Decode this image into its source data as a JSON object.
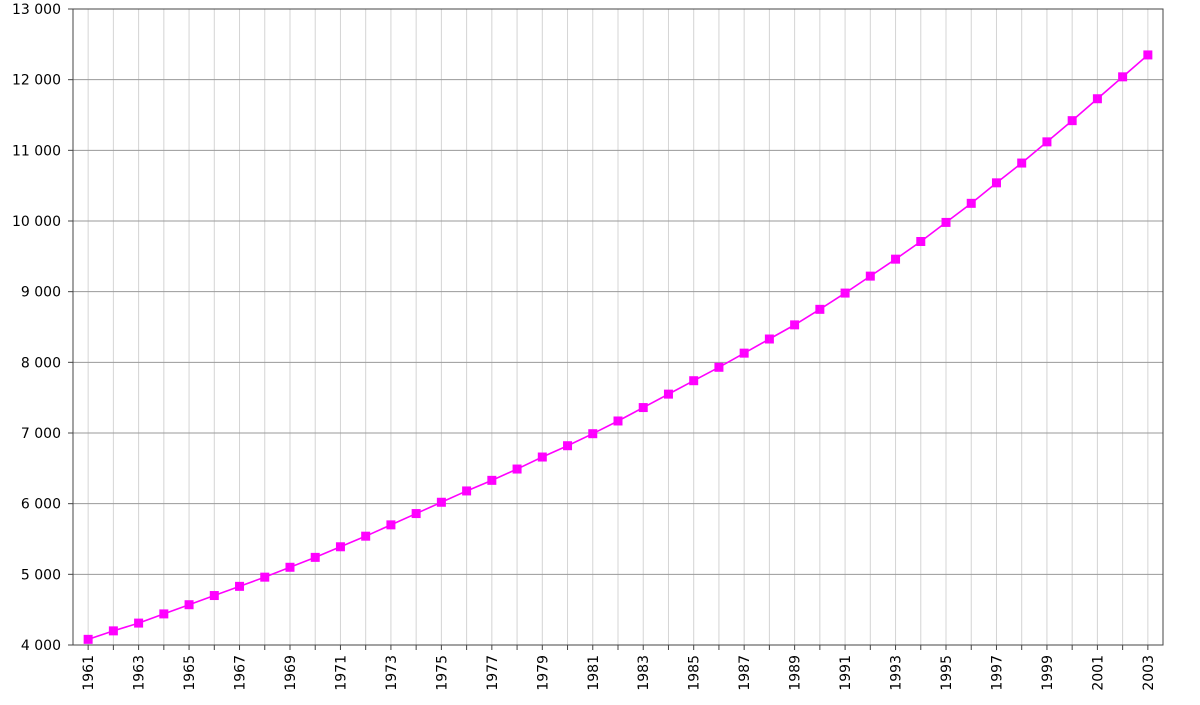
{
  "chart_data": {
    "type": "line",
    "title": "",
    "xlabel": "",
    "ylabel": "",
    "x": [
      1961,
      1962,
      1963,
      1964,
      1965,
      1966,
      1967,
      1968,
      1969,
      1970,
      1971,
      1972,
      1973,
      1974,
      1975,
      1976,
      1977,
      1978,
      1979,
      1980,
      1981,
      1982,
      1983,
      1984,
      1985,
      1986,
      1987,
      1988,
      1989,
      1990,
      1991,
      1992,
      1993,
      1994,
      1995,
      1996,
      1997,
      1998,
      1999,
      2000,
      2001,
      2002,
      2003
    ],
    "series": [
      {
        "values": [
          4080,
          4200,
          4310,
          4440,
          4570,
          4700,
          4830,
          4960,
          5100,
          5240,
          5390,
          5540,
          5700,
          5860,
          6020,
          6180,
          6330,
          6490,
          6660,
          6820,
          6990,
          7170,
          7360,
          7550,
          7740,
          7930,
          8130,
          8330,
          8530,
          8750,
          8980,
          9220,
          9460,
          9710,
          9980,
          10250,
          10540,
          10820,
          11120,
          11420,
          11730,
          12040,
          12350
        ]
      }
    ],
    "xticks": [
      1961,
      1963,
      1965,
      1967,
      1969,
      1971,
      1973,
      1975,
      1977,
      1979,
      1981,
      1983,
      1985,
      1987,
      1989,
      1991,
      1993,
      1995,
      1997,
      1999,
      2001,
      2003
    ],
    "yticks": [
      "4 000",
      "5 000",
      "6 000",
      "7 000",
      "8 000",
      "9 000",
      "10 000",
      "11 000",
      "12 000",
      "13 000"
    ],
    "ylim": [
      4000,
      13000
    ],
    "xlim": [
      1960.4,
      2003.6
    ],
    "grid": true,
    "line_color": "#ff00ff",
    "marker": "square",
    "legend": "none"
  }
}
